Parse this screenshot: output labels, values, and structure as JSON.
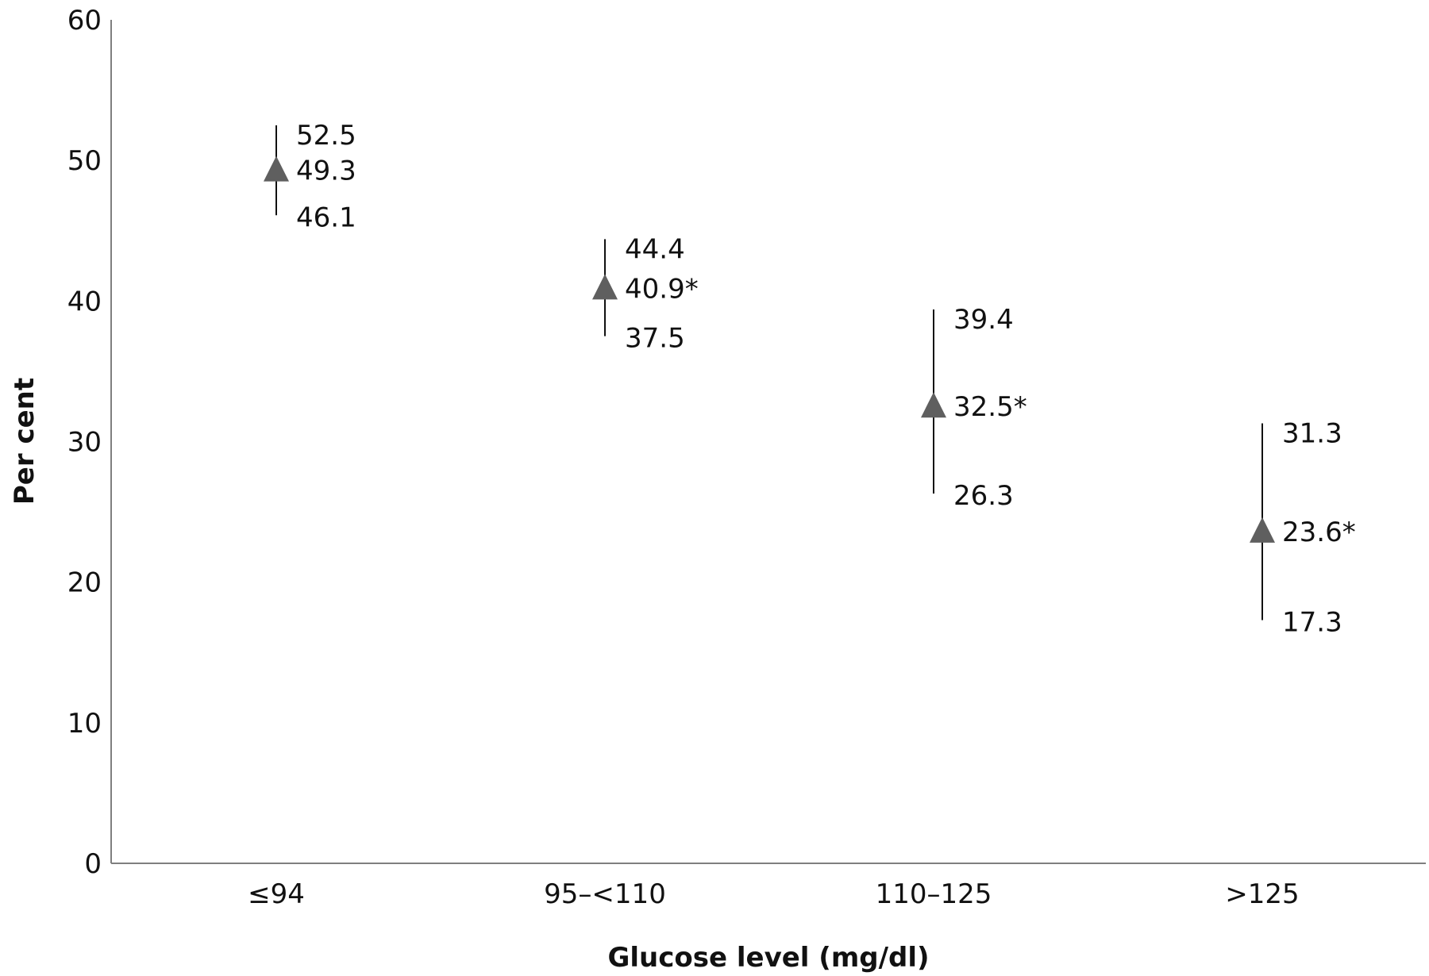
{
  "chart_data": {
    "type": "scatter",
    "xlabel": "Glucose level (mg/dl)",
    "ylabel": "Per cent",
    "ylim": [
      0,
      60
    ],
    "yticks": [
      "0",
      "10",
      "20",
      "30",
      "40",
      "50",
      "60"
    ],
    "categories": [
      "≤94",
      "95–<110",
      "110–125",
      ">125"
    ],
    "points": [
      {
        "category": "≤94",
        "value": 49.3,
        "lower": 46.1,
        "upper": 52.5,
        "value_label": "49.3",
        "lower_label": "46.1",
        "upper_label": "52.5"
      },
      {
        "category": "95–<110",
        "value": 40.9,
        "lower": 37.5,
        "upper": 44.4,
        "value_label": "40.9*",
        "lower_label": "37.5",
        "upper_label": "44.4"
      },
      {
        "category": "110–125",
        "value": 32.5,
        "lower": 26.3,
        "upper": 39.4,
        "value_label": "32.5*",
        "lower_label": "26.3",
        "upper_label": "39.4"
      },
      {
        "category": ">125",
        "value": 23.6,
        "lower": 17.3,
        "upper": 31.3,
        "value_label": "23.6*",
        "lower_label": "17.3",
        "upper_label": "31.3"
      }
    ],
    "marker": "triangle",
    "marker_color": "#5f5f5f",
    "grid": false,
    "legend": "none"
  }
}
